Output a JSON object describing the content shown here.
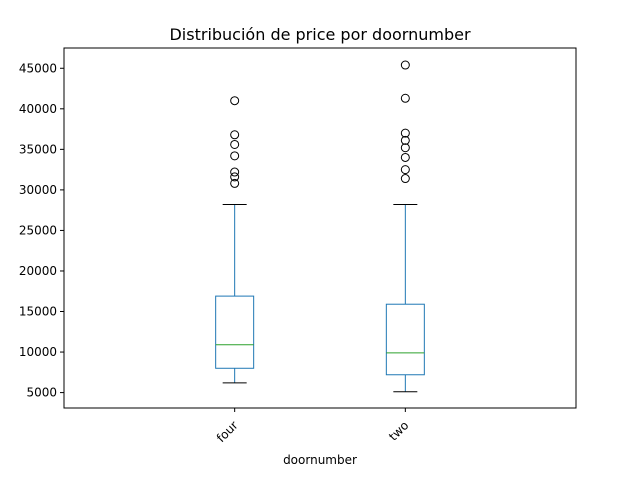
{
  "chart_data": {
    "type": "boxplot",
    "title": "Distribución de price por doornumber",
    "xlabel": "doornumber",
    "ylabel": "",
    "categories": [
      "four",
      "two"
    ],
    "ylim": [
      3100,
      47500
    ],
    "yticks": [
      5000,
      10000,
      15000,
      20000,
      25000,
      30000,
      35000,
      40000,
      45000
    ],
    "grid": false,
    "series": [
      {
        "category": "four",
        "whisker_low": 6200,
        "q1": 8000,
        "median": 10900,
        "q3": 16900,
        "whisker_high": 28200,
        "outliers": [
          30800,
          31600,
          32200,
          34200,
          35600,
          36800,
          41000
        ]
      },
      {
        "category": "two",
        "whisker_low": 5100,
        "q1": 7200,
        "median": 9900,
        "q3": 15900,
        "whisker_high": 28200,
        "outliers": [
          31400,
          32500,
          34000,
          35200,
          36100,
          37000,
          41300,
          45400
        ]
      }
    ],
    "colors": {
      "box": "#1f77b4",
      "median": "#2ca02c",
      "whisker": "#1f77b4",
      "cap": "#000000",
      "outlier": "#000000"
    }
  }
}
